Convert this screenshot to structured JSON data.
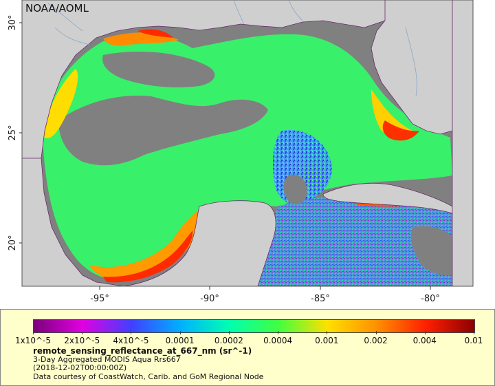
{
  "map": {
    "credit": "NOAA/AOML",
    "latitude_labels": [
      "30°",
      "25°",
      "20°"
    ],
    "longitude_labels": [
      "-95°",
      "-90°",
      "-85°",
      "-80°"
    ],
    "colors": {
      "land": "#cfcfcf",
      "cloud_nodata": "#808080",
      "coast_border": "#6a2c6a",
      "rivers": "#8aa6c8"
    }
  },
  "legend": {
    "colorbar_colors": [
      "#7b007b",
      "#e000e0",
      "#4040ff",
      "#00b0ff",
      "#00ffb0",
      "#40ff40",
      "#ffe000",
      "#ff9000",
      "#ff2000",
      "#8b0000"
    ],
    "tick_labels": [
      "1x10^-5",
      "2x10^-5",
      "4x10^-5",
      "0.0001",
      "0.0002",
      "0.0004",
      "0.001",
      "0.002",
      "0.004",
      "0.01"
    ],
    "title": "remote_sensing_reflectance_at_667_nm (sr^-1)",
    "line2": "3-Day Aggregated MODIS Aqua Rrs667",
    "line3": "(2018-12-02T00:00:00Z)",
    "line4": "Data courtesy of CoastWatch, Carib. and GoM Regional Node"
  }
}
